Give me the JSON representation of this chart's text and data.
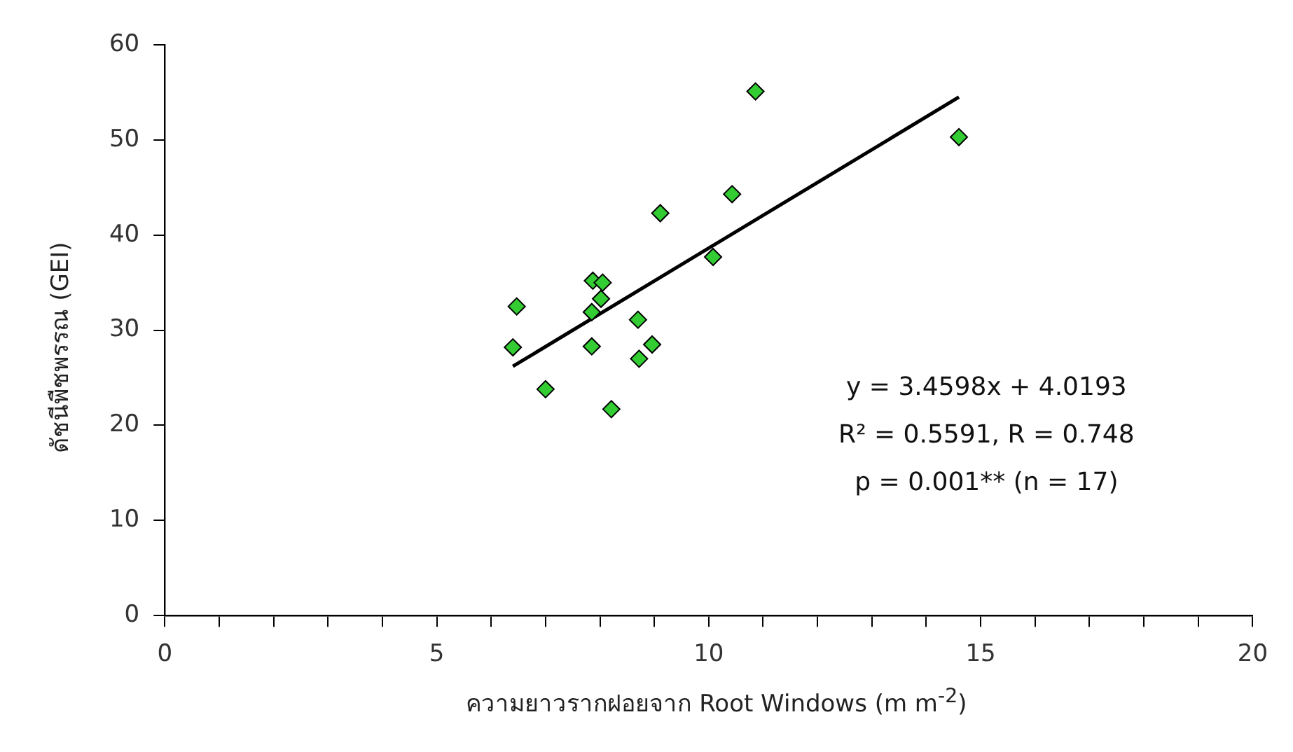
{
  "chart_data": {
    "type": "scatter",
    "xlabel": "ความยาวรากฝอยจาก Root Windows (m m$^{-2}$)",
    "ylabel": "ดัชนีพืชพรรณ (GEI)",
    "xlim": [
      0,
      20
    ],
    "xticks": [
      0,
      {
        "value": 1,
        "label": null
      },
      {
        "value": 2,
        "label": null
      },
      {
        "value": 3,
        "label": null
      },
      {
        "value": 4,
        "label": null
      },
      5,
      {
        "value": 6,
        "label": null
      },
      {
        "value": 7,
        "label": null
      },
      {
        "value": 8,
        "label": null
      },
      {
        "value": 9,
        "label": null
      },
      10,
      {
        "value": 11,
        "label": null
      },
      {
        "value": 12,
        "label": null
      },
      {
        "value": 13,
        "label": null
      },
      {
        "value": 14,
        "label": null
      },
      15,
      {
        "value": 16,
        "label": null
      },
      {
        "value": 17,
        "label": null
      },
      {
        "value": 18,
        "label": null
      },
      {
        "value": 19,
        "label": null
      },
      20
    ],
    "ylim": [
      0,
      60
    ],
    "yticks": [
      0,
      10,
      20,
      30,
      40,
      50,
      60
    ],
    "grid": false,
    "legend": false,
    "marker": "diamond",
    "series": [
      {
        "type": "scatter",
        "color": "#33cc33",
        "x": [
          6.47,
          6.4,
          7.0,
          7.87,
          8.05,
          8.02,
          7.85,
          7.85,
          8.21,
          8.7,
          8.96,
          8.72,
          9.11,
          10.08,
          10.43,
          10.86,
          14.6
        ],
        "values": [
          32.5,
          28.2,
          23.8,
          35.2,
          35.0,
          33.3,
          31.9,
          28.3,
          21.7,
          31.1,
          28.5,
          27.0,
          42.3,
          37.7,
          44.3,
          55.1,
          50.3
        ]
      },
      {
        "type": "line",
        "color": "#000000",
        "marker": "none",
        "line_style": "solid",
        "x": [
          6.4,
          14.6
        ],
        "values": [
          26.2,
          54.5
        ]
      }
    ],
    "annotations": [
      "y = 3.4598x + 4.0193",
      "R² = 0.5591, R = 0.748",
      "p = 0.001** (n = 17)"
    ]
  }
}
